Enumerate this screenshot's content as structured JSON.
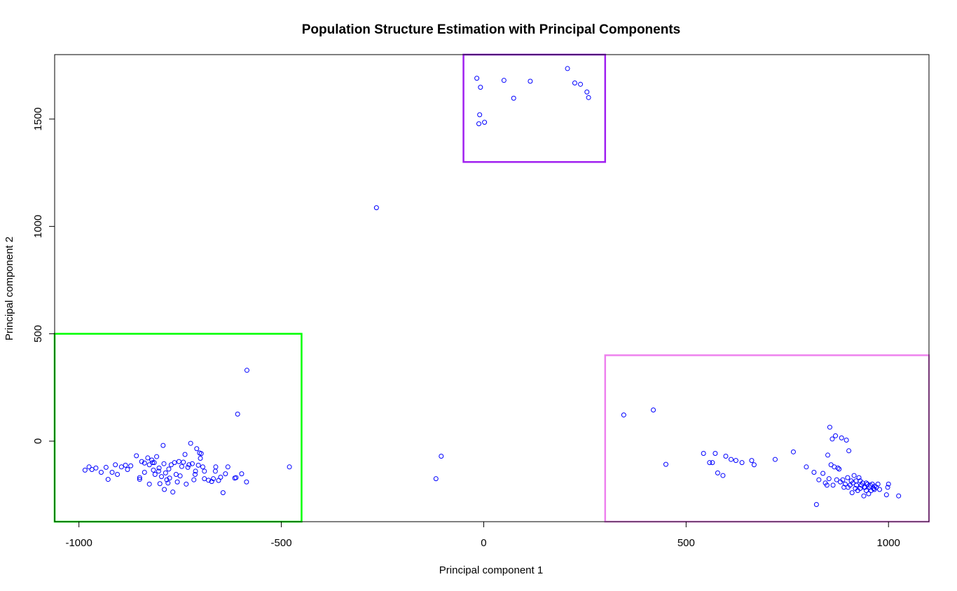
{
  "chart_data": {
    "type": "scatter",
    "title": "Population Structure Estimation with Principal Components",
    "xlabel": "Principal component 1",
    "ylabel": "Principal component 2",
    "xlim": [
      -1060,
      1100
    ],
    "ylim": [
      -375,
      1800
    ],
    "xticks": [
      -1000,
      -500,
      0,
      500,
      1000
    ],
    "yticks": [
      0,
      500,
      1000,
      1500
    ],
    "grid": false,
    "point_color": "#0000ff",
    "rectangles": [
      {
        "name": "cluster-box-top",
        "color": "#a020f0",
        "x0": -50,
        "x1": 300,
        "y0": 1300,
        "y1": 1800
      },
      {
        "name": "cluster-box-left",
        "color": "#00ff00",
        "x0": -1060,
        "x1": -450,
        "y0": -375,
        "y1": 500
      },
      {
        "name": "cluster-box-right",
        "color": "#ee82ee",
        "x0": 300,
        "x1": 1100,
        "y0": -375,
        "y1": 400
      }
    ],
    "points": [
      [
        -17,
        1690
      ],
      [
        -8,
        1648
      ],
      [
        50,
        1680
      ],
      [
        115,
        1676
      ],
      [
        207,
        1735
      ],
      [
        225,
        1668
      ],
      [
        239,
        1662
      ],
      [
        255,
        1626
      ],
      [
        259,
        1600
      ],
      [
        74,
        1597
      ],
      [
        -10,
        1520
      ],
      [
        -12,
        1478
      ],
      [
        2,
        1485
      ],
      [
        -265,
        1087
      ],
      [
        -585,
        330
      ],
      [
        -608,
        126
      ],
      [
        -105,
        -70
      ],
      [
        -118,
        -175
      ],
      [
        346,
        122
      ],
      [
        419,
        145
      ],
      [
        450,
        -108
      ],
      [
        -480,
        -120
      ],
      [
        -598,
        -152
      ],
      [
        -586,
        -190
      ],
      [
        -612,
        -170
      ],
      [
        -615,
        -172
      ],
      [
        -985,
        -135
      ],
      [
        -975,
        -120
      ],
      [
        -968,
        -132
      ],
      [
        -958,
        -125
      ],
      [
        -945,
        -145
      ],
      [
        -933,
        -122
      ],
      [
        -928,
        -178
      ],
      [
        -918,
        -145
      ],
      [
        -910,
        -110
      ],
      [
        -905,
        -155
      ],
      [
        -895,
        -120
      ],
      [
        -885,
        -112
      ],
      [
        -880,
        -132
      ],
      [
        -872,
        -115
      ],
      [
        -858,
        -68
      ],
      [
        -850,
        -178
      ],
      [
        -845,
        -95
      ],
      [
        -838,
        -102
      ],
      [
        -830,
        -78
      ],
      [
        -826,
        -110
      ],
      [
        -820,
        -88
      ],
      [
        -816,
        -135
      ],
      [
        -812,
        -155
      ],
      [
        -808,
        -72
      ],
      [
        -803,
        -140
      ],
      [
        -800,
        -198
      ],
      [
        -796,
        -165
      ],
      [
        -792,
        -20
      ],
      [
        -789,
        -225
      ],
      [
        -786,
        -148
      ],
      [
        -783,
        -180
      ],
      [
        -780,
        -195
      ],
      [
        -776,
        -172
      ],
      [
        -772,
        -110
      ],
      [
        -768,
        -237
      ],
      [
        -764,
        -100
      ],
      [
        -760,
        -155
      ],
      [
        -757,
        -190
      ],
      [
        -753,
        -95
      ],
      [
        -750,
        -162
      ],
      [
        -746,
        -118
      ],
      [
        -742,
        -98
      ],
      [
        -738,
        -62
      ],
      [
        -735,
        -200
      ],
      [
        -731,
        -122
      ],
      [
        -728,
        -110
      ],
      [
        -724,
        -10
      ],
      [
        -720,
        -105
      ],
      [
        -716,
        -180
      ],
      [
        -713,
        -155
      ],
      [
        -709,
        -35
      ],
      [
        -705,
        -112
      ],
      [
        -702,
        -55
      ],
      [
        -698,
        -58
      ],
      [
        -694,
        -120
      ],
      [
        -690,
        -175
      ],
      [
        -680,
        -182
      ],
      [
        -672,
        -188
      ],
      [
        -668,
        -175
      ],
      [
        -662,
        -120
      ],
      [
        -655,
        -183
      ],
      [
        -650,
        -168
      ],
      [
        -644,
        -240
      ],
      [
        -638,
        -152
      ],
      [
        -632,
        -120
      ],
      [
        -700,
        -80
      ],
      [
        -712,
        -140
      ],
      [
        -690,
        -140
      ],
      [
        -663,
        -140
      ],
      [
        -850,
        -170
      ],
      [
        -838,
        -145
      ],
      [
        -826,
        -200
      ],
      [
        -814,
        -100
      ],
      [
        -802,
        -125
      ],
      [
        -790,
        -105
      ],
      [
        -778,
        -130
      ],
      [
        -818,
        -100
      ],
      [
        543,
        -57
      ],
      [
        558,
        -100
      ],
      [
        565,
        -100
      ],
      [
        572,
        -57
      ],
      [
        578,
        -148
      ],
      [
        591,
        -160
      ],
      [
        598,
        -70
      ],
      [
        611,
        -85
      ],
      [
        623,
        -90
      ],
      [
        638,
        -100
      ],
      [
        662,
        -90
      ],
      [
        668,
        -110
      ],
      [
        720,
        -85
      ],
      [
        765,
        -50
      ],
      [
        797,
        -120
      ],
      [
        816,
        -145
      ],
      [
        822,
        -295
      ],
      [
        828,
        -180
      ],
      [
        838,
        -150
      ],
      [
        844,
        -195
      ],
      [
        848,
        -205
      ],
      [
        850,
        -65
      ],
      [
        853,
        -175
      ],
      [
        855,
        65
      ],
      [
        858,
        -110
      ],
      [
        861,
        10
      ],
      [
        863,
        -205
      ],
      [
        866,
        -120
      ],
      [
        869,
        25
      ],
      [
        872,
        -180
      ],
      [
        875,
        -125
      ],
      [
        878,
        -130
      ],
      [
        881,
        -190
      ],
      [
        884,
        15
      ],
      [
        887,
        -180
      ],
      [
        890,
        -215
      ],
      [
        893,
        -200
      ],
      [
        896,
        5
      ],
      [
        899,
        -170
      ],
      [
        902,
        -45
      ],
      [
        905,
        -205
      ],
      [
        908,
        -185
      ],
      [
        912,
        -195
      ],
      [
        915,
        -160
      ],
      [
        918,
        -220
      ],
      [
        921,
        -205
      ],
      [
        924,
        -230
      ],
      [
        927,
        -170
      ],
      [
        930,
        -185
      ],
      [
        933,
        -205
      ],
      [
        936,
        -195
      ],
      [
        939,
        -255
      ],
      [
        942,
        -215
      ],
      [
        945,
        -230
      ],
      [
        948,
        -200
      ],
      [
        951,
        -245
      ],
      [
        954,
        -215
      ],
      [
        957,
        -230
      ],
      [
        960,
        -200
      ],
      [
        963,
        -220
      ],
      [
        966,
        -210
      ],
      [
        970,
        -215
      ],
      [
        974,
        -200
      ],
      [
        978,
        -225
      ],
      [
        995,
        -250
      ],
      [
        998,
        -215
      ],
      [
        1000,
        -200
      ],
      [
        1025,
        -255
      ],
      [
        900,
        -215
      ],
      [
        910,
        -240
      ],
      [
        920,
        -185
      ],
      [
        930,
        -220
      ],
      [
        945,
        -195
      ],
      [
        955,
        -205
      ],
      [
        965,
        -225
      ],
      [
        940,
        -215
      ]
    ]
  }
}
